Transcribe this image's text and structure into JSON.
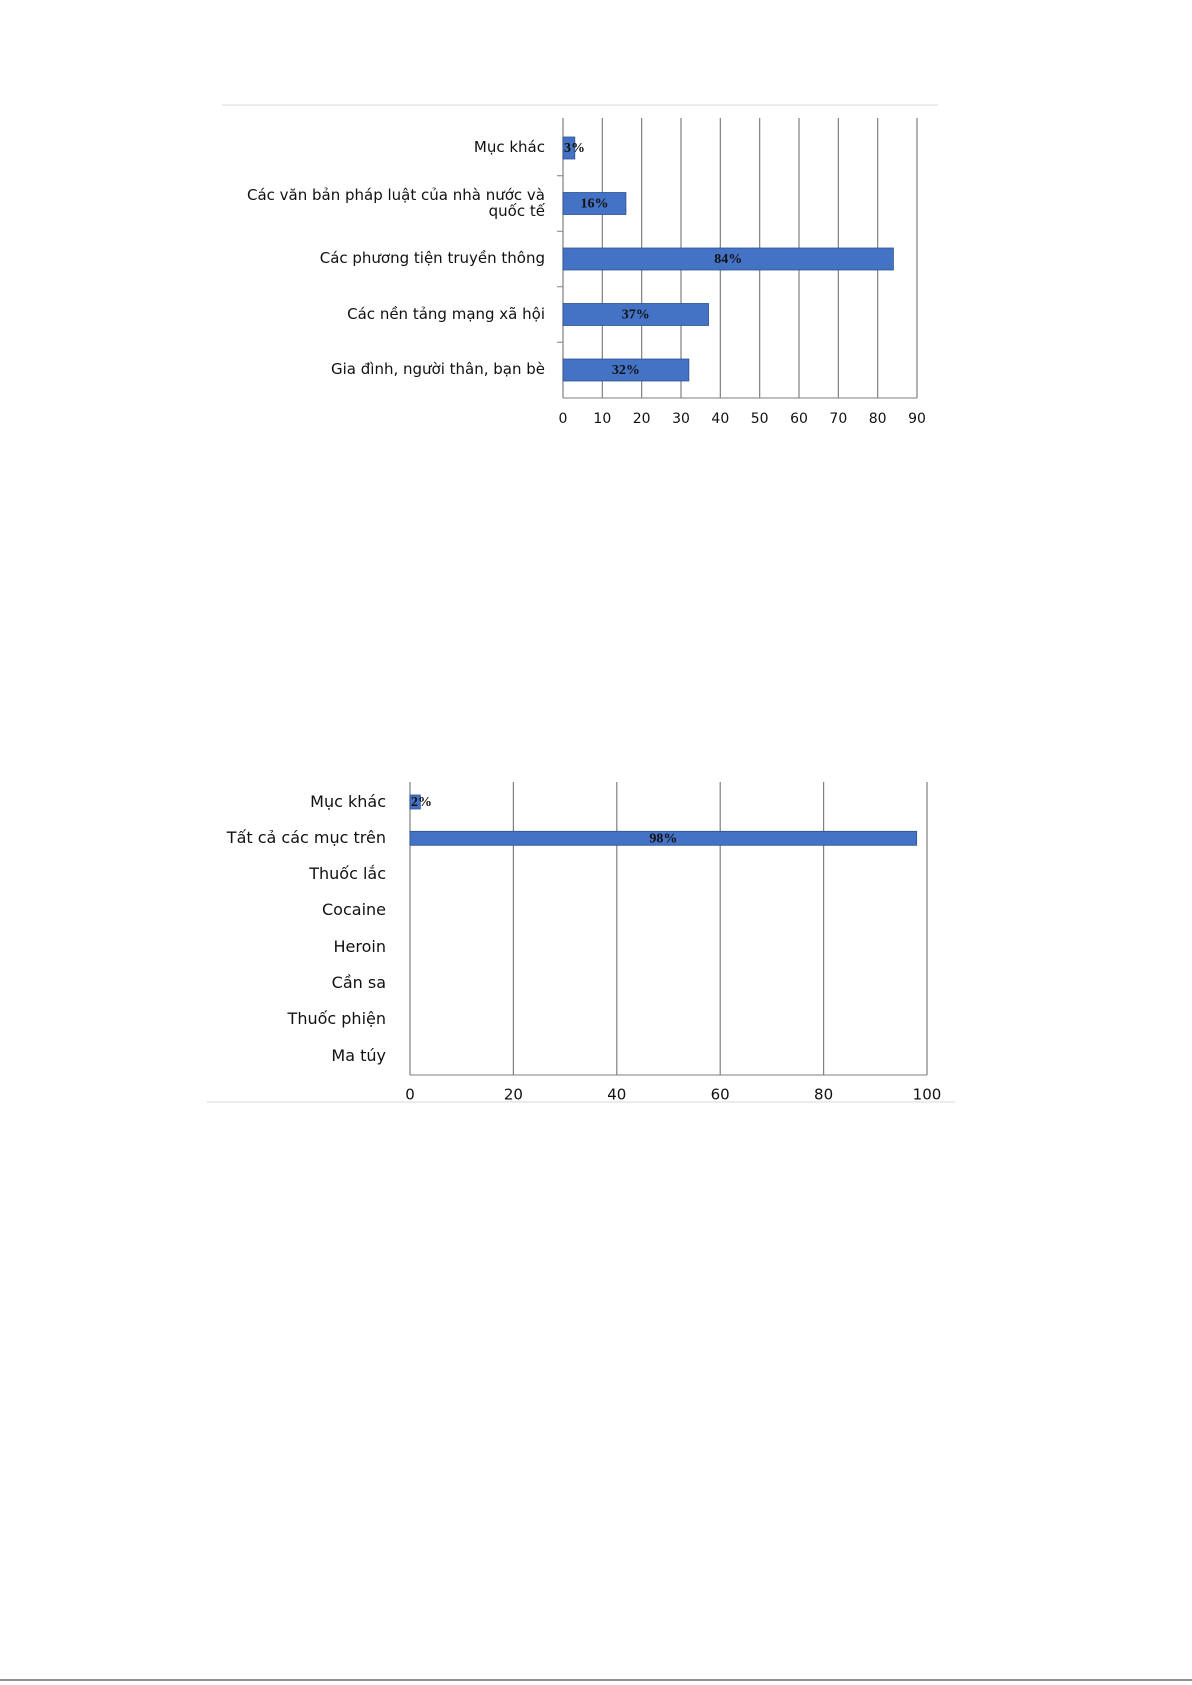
{
  "chart_data": [
    {
      "type": "hbar",
      "categories": [
        "Mục khác",
        "Các văn  bản pháp luật của nhà nước và quốc tế",
        "Các phương tiện truyền thông",
        "Các nền tảng mạng xã hội",
        "Gia đình,  người thân, bạn bè"
      ],
      "values": [
        3,
        16,
        84,
        37,
        32
      ],
      "value_labels": [
        "3%",
        "16%",
        "84%",
        "37%",
        "32%"
      ],
      "color": "#4472c4",
      "xlim": [
        0,
        90
      ],
      "xticks": [
        0,
        10,
        20,
        30,
        40,
        50,
        60,
        70,
        80,
        90
      ],
      "grid": true
    },
    {
      "type": "hbar",
      "categories": [
        "Mục khác",
        "Tất cả các mục trên",
        "Thuốc lắc",
        "Cocaine",
        "Heroin",
        "Cần sa",
        "Thuốc phiện",
        "Ma túy"
      ],
      "values": [
        2,
        98,
        null,
        null,
        null,
        null,
        null,
        null
      ],
      "value_labels": [
        "2%",
        "98%",
        null,
        null,
        null,
        null,
        null,
        null
      ],
      "color": "#4472c4",
      "xlim": [
        0,
        100
      ],
      "xticks": [
        0,
        20,
        40,
        60,
        80,
        100
      ],
      "grid": true
    }
  ]
}
